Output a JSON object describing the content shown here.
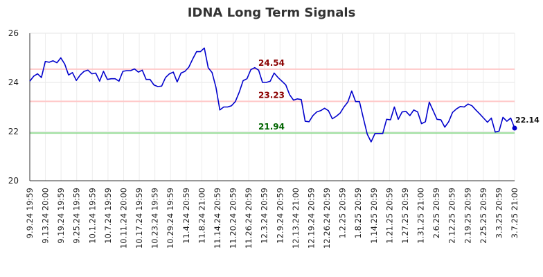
{
  "title": "IDNA Long Term Signals",
  "chart_data": {
    "type": "line",
    "title": "IDNA Long Term Signals",
    "ylim": [
      20,
      26
    ],
    "yticks": [
      "20",
      "22",
      "24",
      "26"
    ],
    "grid": true,
    "x_tick_labels": [
      "9.9.24 19:59",
      "9.13.24 20:00",
      "9.19.24 19:59",
      "9.25.24 19:59",
      "10.1.24 19:59",
      "10.7.24 19:59",
      "10.11.24 20:00",
      "10.17.24 19:59",
      "10.23.24 19:59",
      "10.29.24 19:59",
      "11.4.24 20:59",
      "11.8.24 21:00",
      "11.14.24 20:59",
      "11.20.24 20:59",
      "11.26.24 20:59",
      "12.3.24 20:59",
      "12.9.24 20:59",
      "12.13.24 21:00",
      "12.19.24 20:59",
      "12.26.24 20:59",
      "1.2.25 20:59",
      "1.8.25 20:59",
      "1.14.25 20:59",
      "1.21.25 20:59",
      "1.27.25 20:59",
      "1.31.25 21:00",
      "2.6.25 20:59",
      "2.12.25 20:59",
      "2.19.25 20:59",
      "2.25.25 20:59",
      "3.3.25 20:59",
      "3.7.25 21:00"
    ],
    "series": [
      {
        "color": "#0000cc",
        "values": [
          24.05,
          24.25,
          24.35,
          24.2,
          24.85,
          24.82,
          24.88,
          24.8,
          25.0,
          24.75,
          24.3,
          24.4,
          24.08,
          24.3,
          24.45,
          24.5,
          24.35,
          24.38,
          24.05,
          24.45,
          24.12,
          24.15,
          24.15,
          24.05,
          24.45,
          24.48,
          24.48,
          24.55,
          24.42,
          24.5,
          24.12,
          24.12,
          23.9,
          23.83,
          23.85,
          24.2,
          24.35,
          24.42,
          24.02,
          24.38,
          24.45,
          24.62,
          24.95,
          25.25,
          25.25,
          25.4,
          24.6,
          24.4,
          23.8,
          22.88,
          23.0,
          23.0,
          23.05,
          23.22,
          23.6,
          24.07,
          24.15,
          24.52,
          24.6,
          24.5,
          24.0,
          24.0,
          24.05,
          24.38,
          24.2,
          24.05,
          23.9,
          23.5,
          23.28,
          23.33,
          23.3,
          22.42,
          22.4,
          22.65,
          22.8,
          22.85,
          22.95,
          22.85,
          22.52,
          22.62,
          22.75,
          23.0,
          23.2,
          23.65,
          23.22,
          23.22,
          22.55,
          21.9,
          21.58,
          21.92,
          21.92,
          21.92,
          22.5,
          22.48,
          23.0,
          22.5,
          22.8,
          22.82,
          22.65,
          22.88,
          22.8,
          22.32,
          22.4,
          23.2,
          22.85,
          22.5,
          22.48,
          22.18,
          22.4,
          22.78,
          22.92,
          23.02,
          23.0,
          23.12,
          23.05,
          22.88,
          22.72,
          22.55,
          22.38,
          22.55,
          21.98,
          22.02,
          22.58,
          22.42,
          22.55,
          22.14
        ]
      }
    ],
    "levels": [
      {
        "value": 24.54,
        "label": "24.54",
        "line_color": "#ffc8c8",
        "text_color": "#8b0000"
      },
      {
        "value": 23.23,
        "label": "23.23",
        "line_color": "#ffc8c8",
        "text_color": "#8b0000"
      },
      {
        "value": 21.94,
        "label": "21.94",
        "line_color": "#99dd99",
        "text_color": "#006400"
      }
    ],
    "last_value": {
      "value": 22.14,
      "label": "22.14",
      "color": "#0000cc"
    }
  }
}
